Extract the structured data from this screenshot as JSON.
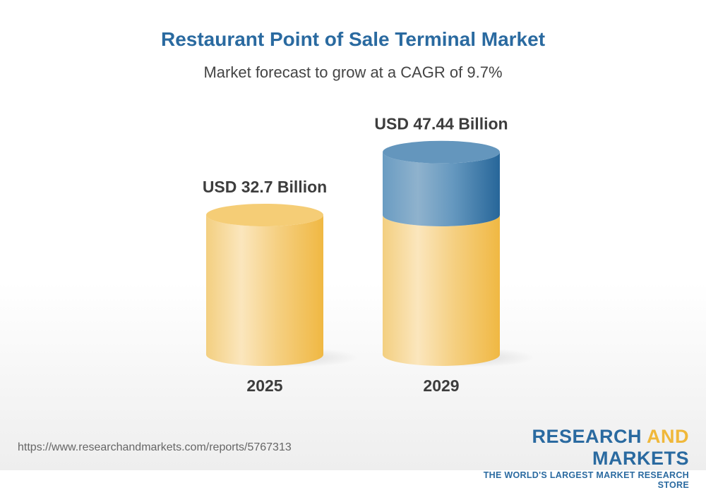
{
  "chart_data": {
    "type": "bar",
    "style": "3d-cylinder",
    "title": "Restaurant Point of Sale Terminal Market",
    "subtitle": "Market forecast to grow at a CAGR of 9.7%",
    "categories": [
      "2025",
      "2029"
    ],
    "values": [
      32.7,
      47.44
    ],
    "data_labels": [
      "USD 32.7 Billion",
      "USD 47.44 Billion"
    ],
    "unit": "USD Billion",
    "colors": {
      "base": "#f2c45a",
      "growth": "#3d78a8",
      "title": "#2a6aa0"
    }
  },
  "footer": {
    "url": "https://www.researchandmarkets.com/reports/5767313",
    "logo": {
      "part1": "RESEARCH ",
      "part2": "AND",
      "part3": " MARKETS",
      "tagline": "THE WORLD'S LARGEST MARKET RESEARCH STORE"
    }
  }
}
